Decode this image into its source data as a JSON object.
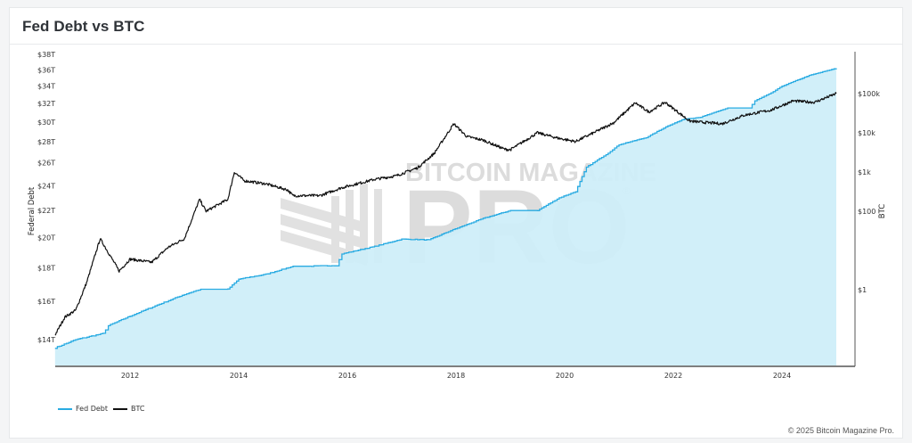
{
  "header": {
    "title": "Fed Debt vs BTC"
  },
  "footer": {
    "copyright": "© 2025 Bitcoin Magazine Pro."
  },
  "watermark": {
    "line1": "BITCOIN MAGAZINE",
    "line2": "PRO",
    "registered": "®"
  },
  "colors": {
    "fed_debt_line": "#29abe2",
    "fed_debt_fill": "#cdeef9",
    "btc_line": "#111111",
    "axis": "#333333",
    "watermark": "#d9d9d9"
  },
  "legend": [
    {
      "label": "Fed Debt",
      "color": "#29abe2"
    },
    {
      "label": "BTC",
      "color": "#111111"
    }
  ],
  "chart_data": {
    "type": "line",
    "title": "Fed Debt vs BTC",
    "xlabel": "",
    "ylabel": "Federal Debt",
    "y2label": "BTC",
    "x_ticks": [
      "2012",
      "2014",
      "2016",
      "2018",
      "2020",
      "2022",
      "2024"
    ],
    "y_ticks": [
      "$14T",
      "$16T",
      "$18T",
      "$20T",
      "$22T",
      "$24T",
      "$26T",
      "$28T",
      "$30T",
      "$32T",
      "$34T",
      "$36T",
      "$38T"
    ],
    "y2_ticks": [
      "$1",
      "$100",
      "$1k",
      "$10k",
      "$100k"
    ],
    "y_scale": "log",
    "y2_scale": "log",
    "xlim": [
      2010.6,
      2025.1
    ],
    "ylim_trillions": [
      13.2,
      38.5
    ],
    "y2lim_usd": [
      0.03,
      1000000
    ],
    "grid": false,
    "legend_position": "bottom-left",
    "series": [
      {
        "name": "Fed Debt",
        "axis": "left",
        "unit": "USD trillions",
        "style": "area",
        "x": [
          2010.62,
          2011.0,
          2011.5,
          2011.6,
          2012.0,
          2012.5,
          2013.0,
          2013.3,
          2013.8,
          2014.0,
          2014.5,
          2015.0,
          2015.3,
          2015.8,
          2015.9,
          2016.5,
          2017.0,
          2017.5,
          2017.9,
          2018.5,
          2019.0,
          2019.5,
          2019.9,
          2020.2,
          2020.4,
          2020.8,
          2021.0,
          2021.5,
          2021.9,
          2022.2,
          2022.5,
          2023.0,
          2023.4,
          2023.5,
          2023.8,
          2024.0,
          2024.5,
          2025.0
        ],
        "values": [
          13.6,
          14.0,
          14.3,
          14.7,
          15.2,
          15.8,
          16.4,
          16.7,
          16.7,
          17.3,
          17.6,
          18.1,
          18.1,
          18.15,
          18.9,
          19.4,
          19.9,
          19.85,
          20.5,
          21.4,
          22.0,
          22.0,
          23.0,
          23.5,
          25.6,
          26.9,
          27.7,
          28.4,
          29.6,
          30.3,
          30.5,
          31.5,
          31.5,
          32.3,
          33.2,
          34.0,
          35.3,
          36.2
        ]
      },
      {
        "name": "BTC",
        "axis": "right",
        "unit": "USD",
        "style": "line",
        "x": [
          2010.62,
          2010.8,
          2011.0,
          2011.2,
          2011.45,
          2011.8,
          2012.0,
          2012.4,
          2012.7,
          2013.0,
          2013.28,
          2013.4,
          2013.8,
          2013.92,
          2014.1,
          2014.5,
          2014.9,
          2015.0,
          2015.5,
          2015.9,
          2016.5,
          2016.9,
          2017.3,
          2017.6,
          2017.96,
          2018.2,
          2018.5,
          2018.9,
          2019.0,
          2019.5,
          2019.9,
          2020.2,
          2020.5,
          2020.9,
          2021.3,
          2021.55,
          2021.85,
          2022.3,
          2022.45,
          2022.9,
          2023.3,
          2023.8,
          2024.2,
          2024.6,
          2025.0
        ],
        "values": [
          0.07,
          0.2,
          0.3,
          1.5,
          20,
          3,
          6,
          5,
          12,
          20,
          200,
          100,
          200,
          1000,
          600,
          500,
          350,
          250,
          250,
          400,
          650,
          800,
          1300,
          3000,
          17000,
          8000,
          6500,
          3800,
          3700,
          10000,
          7200,
          6000,
          9500,
          18000,
          58000,
          34000,
          60000,
          20000,
          19000,
          17000,
          28000,
          38000,
          65000,
          60000,
          100000
        ]
      }
    ]
  }
}
